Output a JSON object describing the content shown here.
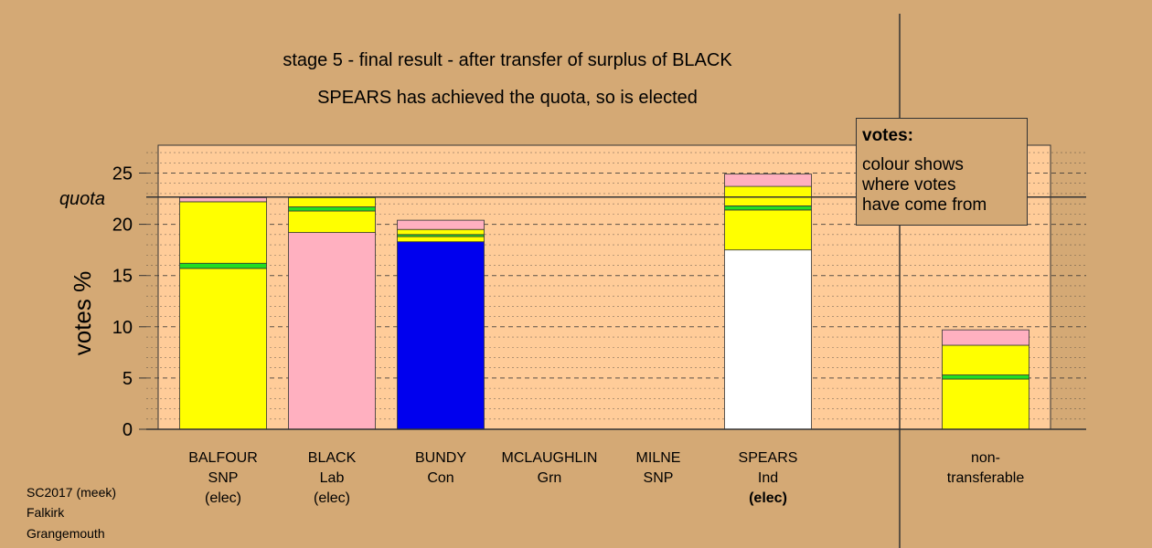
{
  "title_lines": [
    "stage 5 - final result - after transfer of surplus of BLACK",
    "SPEARS has achieved the quota, so is elected"
  ],
  "legend": {
    "title": "votes:",
    "lines": [
      "colour shows",
      "where votes",
      "have come from"
    ]
  },
  "footer": [
    "SC2017 (meek)",
    "Falkirk",
    "Grangemouth"
  ],
  "colors": {
    "background": "#D4A975",
    "plot_bg": "#FFCC99",
    "SNP": "#FFFF00",
    "Lab": "#FFB0C0",
    "Con": "#0000EE",
    "Grn": "#22DD22",
    "Ind": "#FFFFFF"
  },
  "chart_data": {
    "type": "bar",
    "stacked": true,
    "ylabel": "votes %",
    "ylim": [
      0,
      27.5
    ],
    "yticks": [
      0,
      5,
      10,
      15,
      20,
      25
    ],
    "quota": 22.6,
    "quota_label": "quota",
    "categories": [
      {
        "name": "BALFOUR",
        "party": "SNP",
        "status": "(elec)",
        "segments": [
          {
            "party": "SNP",
            "value": 15.7
          },
          {
            "party": "Grn",
            "value": 0.5
          },
          {
            "party": "SNP",
            "value": 6.0
          },
          {
            "party": "Lab",
            "value": 0.4
          }
        ]
      },
      {
        "name": "BLACK",
        "party": "Lab",
        "status": "(elec)",
        "segments": [
          {
            "party": "Lab",
            "value": 19.2
          },
          {
            "party": "SNP",
            "value": 2.1
          },
          {
            "party": "Grn",
            "value": 0.4
          },
          {
            "party": "SNP",
            "value": 0.9
          }
        ]
      },
      {
        "name": "BUNDY",
        "party": "Con",
        "status": "",
        "segments": [
          {
            "party": "Con",
            "value": 18.3
          },
          {
            "party": "SNP",
            "value": 0.5
          },
          {
            "party": "Grn",
            "value": 0.2
          },
          {
            "party": "SNP",
            "value": 0.5
          },
          {
            "party": "Lab",
            "value": 0.9
          }
        ]
      },
      {
        "name": "MCLAUGHLIN",
        "party": "Grn",
        "status": "",
        "segments": []
      },
      {
        "name": "MILNE",
        "party": "SNP",
        "status": "",
        "segments": []
      },
      {
        "name": "SPEARS",
        "party": "Ind",
        "status": "(elec)",
        "segments": [
          {
            "party": "Ind",
            "value": 17.5
          },
          {
            "party": "SNP",
            "value": 3.9
          },
          {
            "party": "Grn",
            "value": 0.4
          },
          {
            "party": "SNP",
            "value": 1.9
          },
          {
            "party": "Lab",
            "value": 1.2
          }
        ]
      },
      {
        "name": "non-",
        "party": "transferable",
        "status": "",
        "segments": [
          {
            "party": "SNP",
            "value": 4.9
          },
          {
            "party": "Grn",
            "value": 0.4
          },
          {
            "party": "SNP",
            "value": 2.9
          },
          {
            "party": "Lab",
            "value": 1.5
          }
        ]
      }
    ]
  }
}
